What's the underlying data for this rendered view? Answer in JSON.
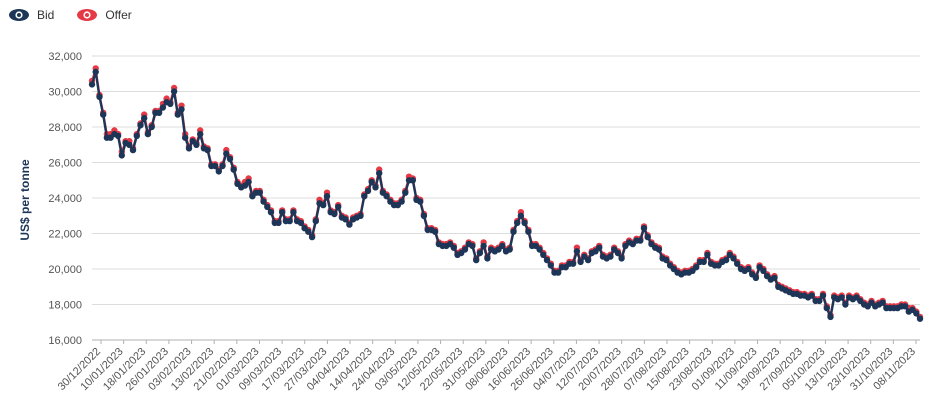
{
  "legend": {
    "items": [
      {
        "label": "Bid",
        "color": "#1d3557"
      },
      {
        "label": "Offer",
        "color": "#e63946"
      }
    ]
  },
  "chart_data": {
    "type": "line",
    "ylabel": "US$ per tonne",
    "ylim": [
      16000,
      32000
    ],
    "y_ticks": [
      16000,
      18000,
      20000,
      22000,
      24000,
      26000,
      28000,
      30000,
      32000
    ],
    "y_tick_labels": [
      "16,000",
      "18,000",
      "20,000",
      "22,000",
      "24,000",
      "26,000",
      "28,000",
      "30,000",
      "32,000"
    ],
    "x_tick_labels": [
      "30/12/2022",
      "10/01/2023",
      "18/01/2023",
      "26/01/2023",
      "03/02/2023",
      "13/02/2023",
      "21/02/2023",
      "01/03/2023",
      "09/03/2023",
      "17/03/2023",
      "27/03/2023",
      "04/04/2023",
      "14/04/2023",
      "24/04/2023",
      "03/05/2023",
      "12/05/2023",
      "22/05/2023",
      "31/05/2023",
      "08/06/2023",
      "16/06/2023",
      "26/06/2023",
      "04/07/2023",
      "12/07/2023",
      "20/07/2023",
      "28/07/2023",
      "07/08/2023",
      "15/08/2023",
      "23/08/2023",
      "01/09/2023",
      "11/09/2023",
      "19/09/2023",
      "27/09/2023",
      "05/10/2023",
      "13/10/2023",
      "23/10/2023",
      "31/10/2023",
      "08/11/2023"
    ],
    "series": [
      {
        "name": "Bid",
        "color": "#1d3557",
        "values": [
          30400,
          31100,
          29700,
          28700,
          27400,
          27400,
          27600,
          27500,
          26400,
          27100,
          27000,
          26700,
          27500,
          28100,
          28500,
          27600,
          28000,
          28800,
          28800,
          29100,
          29400,
          29300,
          30000,
          28700,
          29000,
          27400,
          26800,
          27200,
          27000,
          27600,
          26800,
          26700,
          25800,
          25800,
          25500,
          25800,
          26500,
          26200,
          25600,
          24800,
          24600,
          24700,
          24900,
          24100,
          24300,
          24300,
          23800,
          23500,
          23200,
          22600,
          22600,
          23200,
          22700,
          22700,
          23200,
          22700,
          22600,
          22300,
          22100,
          21800,
          22700,
          23700,
          23600,
          24100,
          23200,
          23100,
          23500,
          22900,
          22800,
          22500,
          22800,
          22900,
          23000,
          24100,
          24400,
          24900,
          24600,
          25400,
          24300,
          24100,
          23800,
          23600,
          23600,
          23800,
          24300,
          25000,
          25000,
          23900,
          23800,
          23000,
          22200,
          22200,
          22100,
          21400,
          21300,
          21300,
          21400,
          21200,
          20800,
          20900,
          21100,
          21400,
          21300,
          20500,
          20900,
          21300,
          20600,
          21100,
          21000,
          21100,
          21300,
          21000,
          21100,
          22100,
          22600,
          23000,
          22600,
          22100,
          21300,
          21300,
          21100,
          20800,
          20500,
          20200,
          19800,
          19800,
          20100,
          20100,
          20300,
          20300,
          21000,
          20400,
          20700,
          20500,
          20900,
          21000,
          21200,
          20700,
          20600,
          20700,
          21100,
          20900,
          20600,
          21300,
          21500,
          21400,
          21600,
          21600,
          22300,
          21800,
          21400,
          21200,
          21100,
          20600,
          20500,
          20200,
          20000,
          19800,
          19700,
          19800,
          19800,
          19900,
          20100,
          20400,
          20400,
          20800,
          20300,
          20200,
          20200,
          20400,
          20500,
          20800,
          20600,
          20300,
          20000,
          19900,
          20000,
          19700,
          19500,
          20100,
          19900,
          19600,
          19400,
          19500,
          19000,
          18900,
          18800,
          18700,
          18600,
          18600,
          18500,
          18500,
          18400,
          18500,
          18200,
          18200,
          18500,
          17800,
          17300,
          18400,
          18300,
          18400,
          18000,
          18400,
          18300,
          18400,
          18200,
          18000,
          17900,
          18100,
          17900,
          18000,
          18100,
          17800,
          17800,
          17800,
          17800,
          17900,
          17900,
          17600,
          17700,
          17500,
          17200
        ]
      },
      {
        "name": "Offer",
        "color": "#e63946",
        "values": [
          30600,
          31300,
          29800,
          28800,
          27600,
          27600,
          27800,
          27600,
          26600,
          27200,
          27200,
          26800,
          27600,
          28200,
          28700,
          27700,
          28100,
          28900,
          28900,
          29300,
          29600,
          29400,
          30200,
          28800,
          29200,
          27600,
          26900,
          27300,
          27100,
          27800,
          26900,
          26800,
          25900,
          25900,
          25600,
          25900,
          26700,
          26300,
          25700,
          24900,
          24700,
          24900,
          25100,
          24200,
          24400,
          24400,
          23900,
          23600,
          23300,
          22700,
          22700,
          23300,
          22800,
          22800,
          23300,
          22800,
          22700,
          22400,
          22200,
          21900,
          22800,
          23900,
          23700,
          24300,
          23300,
          23200,
          23600,
          23000,
          22900,
          22600,
          22900,
          23000,
          23100,
          24200,
          24500,
          25000,
          24700,
          25600,
          24400,
          24200,
          23900,
          23700,
          23700,
          23900,
          24400,
          25200,
          25100,
          24000,
          23900,
          23100,
          22300,
          22300,
          22200,
          21500,
          21400,
          21400,
          21500,
          21300,
          20900,
          21000,
          21200,
          21500,
          21400,
          20600,
          21000,
          21500,
          20700,
          21200,
          21100,
          21200,
          21400,
          21100,
          21200,
          22200,
          22700,
          23200,
          22700,
          22200,
          21400,
          21400,
          21200,
          20900,
          20600,
          20300,
          19900,
          19900,
          20200,
          20200,
          20400,
          20400,
          21200,
          20500,
          20800,
          20600,
          21000,
          21100,
          21300,
          20800,
          20700,
          20800,
          21200,
          21000,
          20700,
          21400,
          21600,
          21500,
          21700,
          21700,
          22400,
          21900,
          21500,
          21300,
          21200,
          20700,
          20600,
          20300,
          20100,
          19900,
          19800,
          19900,
          19900,
          20000,
          20200,
          20500,
          20500,
          20900,
          20400,
          20300,
          20300,
          20500,
          20600,
          20900,
          20700,
          20400,
          20100,
          20000,
          20100,
          19800,
          19600,
          20200,
          20000,
          19700,
          19500,
          19600,
          19100,
          19000,
          18900,
          18800,
          18700,
          18700,
          18600,
          18600,
          18500,
          18600,
          18300,
          18300,
          18600,
          17900,
          17400,
          18500,
          18400,
          18500,
          18100,
          18500,
          18400,
          18500,
          18300,
          18100,
          18000,
          18200,
          18000,
          18100,
          18200,
          17900,
          17900,
          17900,
          17900,
          18000,
          18000,
          17800,
          17800,
          17600,
          17300
        ]
      }
    ],
    "grid": "horizontal",
    "legend_position": "top-left"
  }
}
